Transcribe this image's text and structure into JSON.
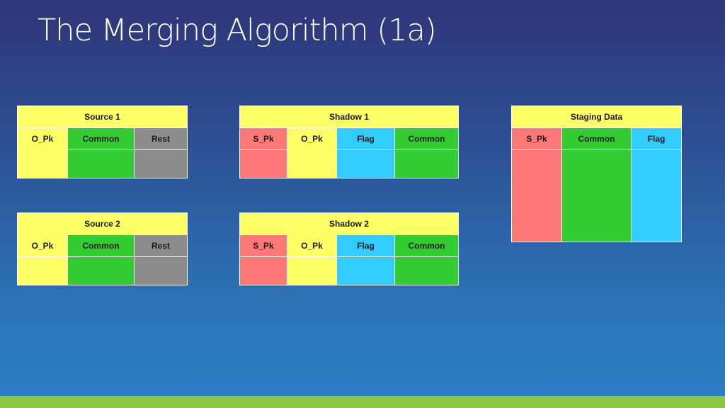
{
  "slide": {
    "title": "The Merging Algorithm (1a)"
  },
  "tables": {
    "source1": {
      "title": "Source 1",
      "columns": [
        "O_Pk",
        "Common",
        "Rest"
      ]
    },
    "source2": {
      "title": "Source 2",
      "columns": [
        "O_Pk",
        "Common",
        "Rest"
      ]
    },
    "shadow1": {
      "title": "Shadow 1",
      "columns": [
        "S_Pk",
        "O_Pk",
        "Flag",
        "Common"
      ]
    },
    "shadow2": {
      "title": "Shadow 2",
      "columns": [
        "S_Pk",
        "O_Pk",
        "Flag",
        "Common"
      ]
    },
    "staging": {
      "title": "Staging Data",
      "columns": [
        "S_Pk",
        "Common",
        "Flag"
      ]
    }
  },
  "colors": {
    "yellow": "#ffff66",
    "green": "#33cc33",
    "gray": "#8c8c8c",
    "red": "#ff7878",
    "blue": "#33ccff",
    "footer_bar": "#8dc63f"
  }
}
